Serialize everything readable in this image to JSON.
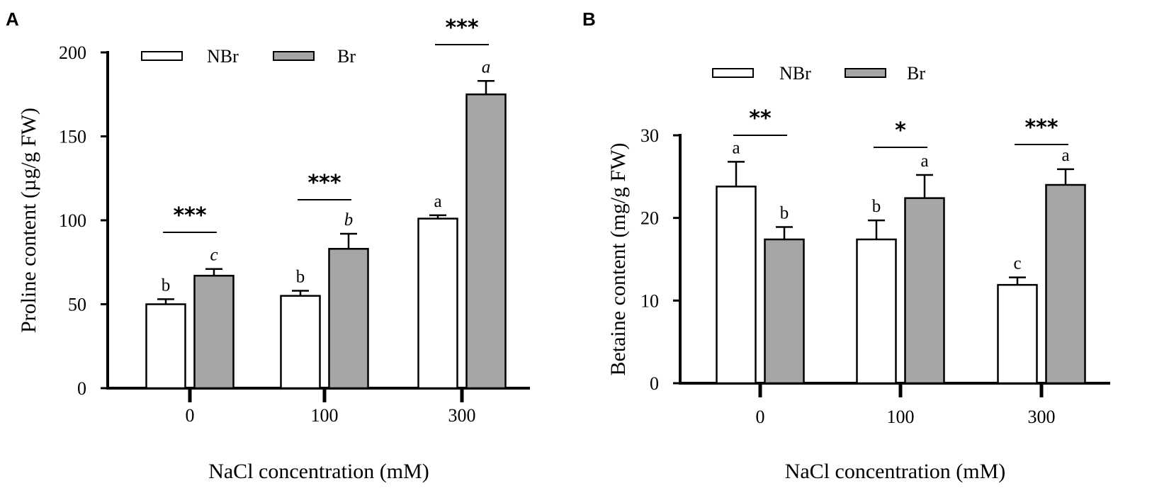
{
  "colors": {
    "nbr": "#ffffff",
    "br": "#a6a6a8",
    "stroke": "#000000"
  },
  "chart_data": [
    {
      "panel": "A",
      "type": "bar",
      "xlabel": "NaCl concentration (mM)",
      "ylabel": "Proline content (µg/g FW)",
      "ylim": [
        0,
        200
      ],
      "yticks": [
        0,
        50,
        100,
        150,
        200
      ],
      "categories": [
        "0",
        "100",
        "300"
      ],
      "series": [
        {
          "name": "NBr",
          "values": [
            50,
            55,
            101
          ],
          "errors": [
            3,
            3,
            2
          ],
          "letters": [
            "b",
            "b",
            "a"
          ],
          "italic": false
        },
        {
          "name": "Br",
          "values": [
            67,
            83,
            175
          ],
          "errors": [
            4,
            9,
            8
          ],
          "letters": [
            "c",
            "b",
            "a"
          ],
          "italic": true
        }
      ],
      "significance": [
        "***",
        "***",
        "***"
      ],
      "legend": "top-left"
    },
    {
      "panel": "B",
      "type": "bar",
      "xlabel": "NaCl concentration (mM)",
      "ylabel": "Betaine content (mg/g FW)",
      "ylim": [
        0,
        30
      ],
      "yticks": [
        0,
        10,
        20,
        30
      ],
      "categories": [
        "0",
        "100",
        "300"
      ],
      "series": [
        {
          "name": "NBr",
          "values": [
            23.8,
            17.4,
            11.9
          ],
          "errors": [
            3.0,
            2.3,
            0.9
          ],
          "letters": [
            "a",
            "b",
            "c"
          ],
          "italic": false
        },
        {
          "name": "Br",
          "values": [
            17.4,
            22.4,
            24.0
          ],
          "errors": [
            1.5,
            2.8,
            1.9
          ],
          "letters": [
            "b",
            "a",
            "a"
          ],
          "italic": false
        }
      ],
      "significance": [
        "**",
        "*",
        "***"
      ],
      "legend": "top"
    }
  ]
}
